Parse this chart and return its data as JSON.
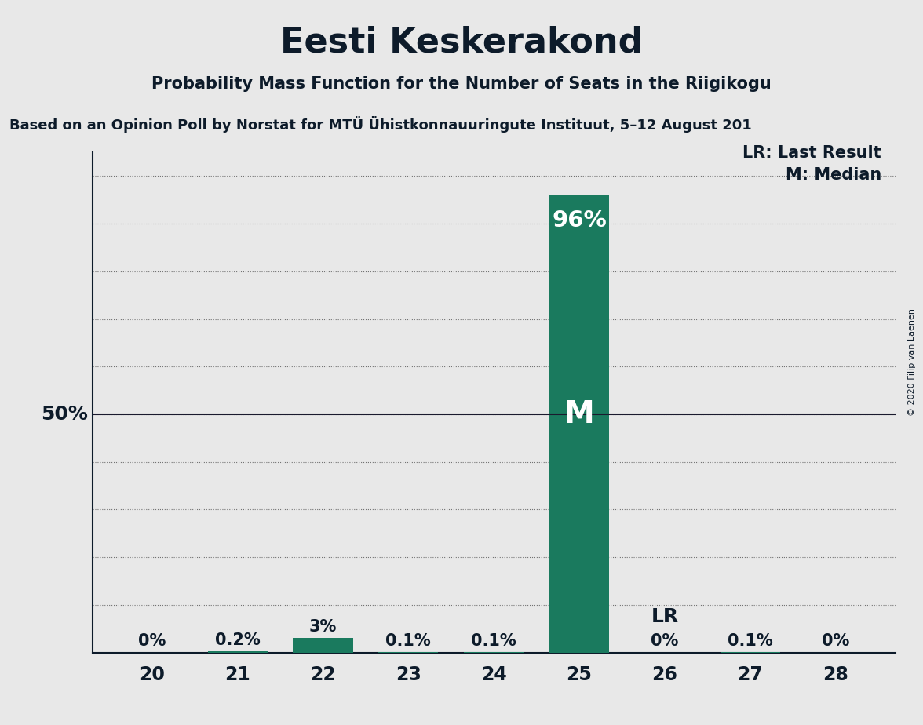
{
  "title": "Eesti Keskerakond",
  "subtitle": "Probability Mass Function for the Number of Seats in the Riigikogu",
  "source_line": "Based on an Opinion Poll by Norstat for MTÜ Ühistkonnauuringute Instituut, 5–12 August 201",
  "seats": [
    20,
    21,
    22,
    23,
    24,
    25,
    26,
    27,
    28
  ],
  "probabilities": [
    0.0,
    0.002,
    0.03,
    0.001,
    0.001,
    0.96,
    0.0,
    0.001,
    0.0
  ],
  "bar_labels": [
    "0%",
    "0.2%",
    "3%",
    "0.1%",
    "0.1%",
    "96%",
    "0%",
    "0.1%",
    "0%"
  ],
  "bar_color": "#1a7a5e",
  "background_color": "#e8e8e8",
  "text_color": "#0d1b2a",
  "median_seat": 25,
  "lr_seat": 26,
  "lr_label": "LR",
  "median_label": "M",
  "legend_lr": "LR: Last Result",
  "legend_m": "M: Median",
  "ylabel_50": "50%",
  "ylim": [
    0,
    1.05
  ],
  "copyright": "© 2020 Filip van Laenen",
  "grid_color": "#555555",
  "line_50pct_color": "#1a1a2e",
  "bar_width": 0.7
}
